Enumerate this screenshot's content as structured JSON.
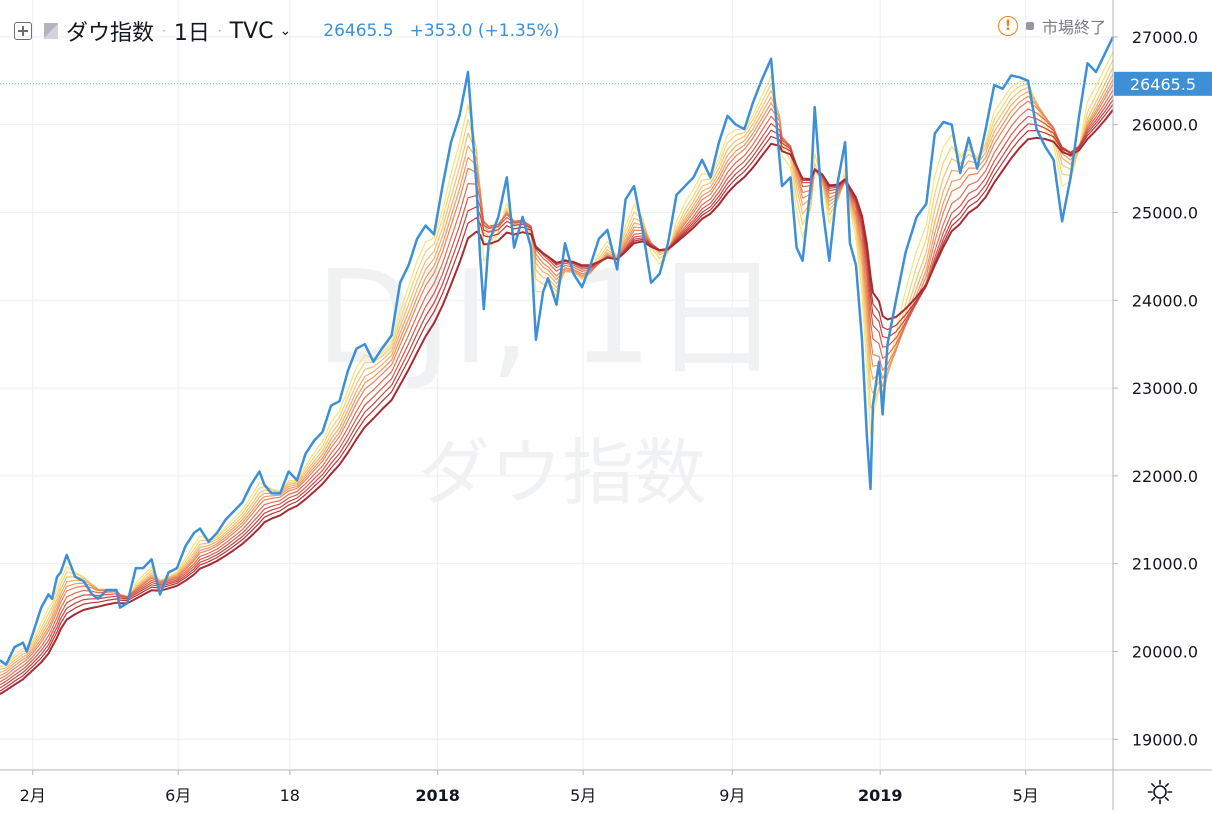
{
  "header": {
    "symbol": "ダウ指数",
    "interval": "1日",
    "exchange": "TVC",
    "last_price": "26465.5",
    "change": "+353.0 (+1.35%)",
    "status": "市場終了",
    "sep": "·"
  },
  "watermark": {
    "ticker": "DJI, 1日",
    "name": "ダウ指数"
  },
  "price_label": "26465.5",
  "colors": {
    "price_line": "#3d8fd6",
    "ribbon": [
      "#f7e37c",
      "#f6d276",
      "#f4c070",
      "#f1ac69",
      "#ee9862",
      "#e9835b",
      "#e06d53",
      "#d5584b",
      "#c94542",
      "#b9363a",
      "#a62c33"
    ],
    "grid": "#eceef2",
    "current_line": "#5ba7e8"
  },
  "chart_data": {
    "type": "line",
    "title": "",
    "xlabel": "",
    "ylabel": "",
    "ylim": [
      18650,
      27420
    ],
    "y_ticks": [
      19000,
      20000,
      21000,
      22000,
      23000,
      24000,
      25000,
      26000,
      27000
    ],
    "y_tick_labels": [
      "19000.0",
      "20000.0",
      "21000.0",
      "22000.0",
      "23000.0",
      "24000.0",
      "25000.0",
      "26000.0",
      "27000.0"
    ],
    "x_ticks": [
      "2月",
      "6月",
      "18",
      "2018",
      "5月",
      "9月",
      "2019",
      "5月"
    ],
    "bold_x_ticks": [
      "2018",
      "2019"
    ],
    "x_range": [
      "2017-01-05",
      "2019-07-12"
    ],
    "x_tick_dates": [
      "2017-02-01",
      "2017-06-01",
      "2017-09-01",
      "2018-01-01",
      "2018-05-01",
      "2018-09-01",
      "2019-01-01",
      "2019-05-01"
    ],
    "current_value": 26465.5,
    "series": [
      {
        "x": [
          "2017-01-05",
          "2017-01-10",
          "2017-01-17",
          "2017-01-24",
          "2017-01-27",
          "2017-02-01",
          "2017-02-08",
          "2017-02-14",
          "2017-02-17",
          "2017-02-21",
          "2017-02-24",
          "2017-03-01",
          "2017-03-08",
          "2017-03-15",
          "2017-03-22",
          "2017-03-27",
          "2017-04-03",
          "2017-04-11",
          "2017-04-14",
          "2017-04-20",
          "2017-04-27",
          "2017-05-03",
          "2017-05-10",
          "2017-05-17",
          "2017-05-24",
          "2017-05-31",
          "2017-06-07",
          "2017-06-14",
          "2017-06-19",
          "2017-06-26",
          "2017-07-03",
          "2017-07-10",
          "2017-07-17",
          "2017-07-24",
          "2017-07-31",
          "2017-08-07",
          "2017-08-11",
          "2017-08-17",
          "2017-08-24",
          "2017-08-31",
          "2017-09-07",
          "2017-09-14",
          "2017-09-21",
          "2017-09-28",
          "2017-10-05",
          "2017-10-12",
          "2017-10-19",
          "2017-10-26",
          "2017-11-02",
          "2017-11-09",
          "2017-11-16",
          "2017-11-24",
          "2017-12-01",
          "2017-12-08",
          "2017-12-15",
          "2017-12-22",
          "2017-12-29",
          "2018-01-05",
          "2018-01-12",
          "2018-01-19",
          "2018-01-26",
          "2018-02-02",
          "2018-02-05",
          "2018-02-08",
          "2018-02-12",
          "2018-02-20",
          "2018-02-27",
          "2018-03-05",
          "2018-03-12",
          "2018-03-19",
          "2018-03-23",
          "2018-03-29",
          "2018-04-02",
          "2018-04-09",
          "2018-04-16",
          "2018-04-23",
          "2018-04-30",
          "2018-05-07",
          "2018-05-14",
          "2018-05-21",
          "2018-05-29",
          "2018-06-05",
          "2018-06-12",
          "2018-06-19",
          "2018-06-26",
          "2018-07-03",
          "2018-07-10",
          "2018-07-17",
          "2018-07-24",
          "2018-07-31",
          "2018-08-07",
          "2018-08-14",
          "2018-08-21",
          "2018-08-28",
          "2018-09-04",
          "2018-09-11",
          "2018-09-18",
          "2018-09-25",
          "2018-10-03",
          "2018-10-10",
          "2018-10-12",
          "2018-10-19",
          "2018-10-24",
          "2018-10-29",
          "2018-11-05",
          "2018-11-08",
          "2018-11-14",
          "2018-11-20",
          "2018-11-27",
          "2018-12-03",
          "2018-12-07",
          "2018-12-12",
          "2018-12-17",
          "2018-12-21",
          "2018-12-24",
          "2018-12-26",
          "2018-12-31",
          "2019-01-03",
          "2019-01-07",
          "2019-01-14",
          "2019-01-22",
          "2019-01-31",
          "2019-02-08",
          "2019-02-15",
          "2019-02-22",
          "2019-03-01",
          "2019-03-08",
          "2019-03-15",
          "2019-03-22",
          "2019-03-29",
          "2019-04-05",
          "2019-04-12",
          "2019-04-19",
          "2019-04-26",
          "2019-05-03",
          "2019-05-10",
          "2019-05-17",
          "2019-05-24",
          "2019-05-31",
          "2019-06-07",
          "2019-06-14",
          "2019-06-21",
          "2019-06-28",
          "2019-07-05",
          "2019-07-12"
        ],
        "values": [
          19900,
          19850,
          20050,
          20100,
          20000,
          20200,
          20500,
          20650,
          20600,
          20850,
          20900,
          21100,
          20850,
          20800,
          20650,
          20600,
          20700,
          20700,
          20500,
          20550,
          20950,
          20950,
          21050,
          20650,
          20900,
          20950,
          21200,
          21350,
          21400,
          21250,
          21350,
          21500,
          21600,
          21700,
          21900,
          22050,
          21900,
          21800,
          21800,
          22050,
          21950,
          22250,
          22400,
          22500,
          22800,
          22850,
          23200,
          23450,
          23500,
          23300,
          23450,
          23600,
          24200,
          24400,
          24700,
          24850,
          24750,
          25300,
          25800,
          26100,
          26600,
          25300,
          24500,
          23900,
          24650,
          24950,
          25400,
          24600,
          24950,
          24600,
          23550,
          24100,
          24250,
          23950,
          24650,
          24300,
          24150,
          24400,
          24700,
          24800,
          24350,
          25150,
          25300,
          24800,
          24200,
          24300,
          24650,
          25200,
          25300,
          25400,
          25600,
          25400,
          25800,
          26100,
          26000,
          25950,
          26250,
          26500,
          26750,
          25600,
          25300,
          25400,
          24600,
          24450,
          25350,
          26200,
          25100,
          24450,
          25350,
          25800,
          24650,
          24400,
          23550,
          22450,
          21850,
          22800,
          23300,
          22700,
          23500,
          24000,
          24550,
          24950,
          25100,
          25900,
          26030,
          26000,
          25450,
          25850,
          25500,
          25950,
          26450,
          26410,
          26560,
          26540,
          26500,
          25950,
          25750,
          25600,
          24900,
          25400,
          26100,
          26700,
          26600,
          26800,
          27000
        ],
        "name": ""
      }
    ]
  }
}
